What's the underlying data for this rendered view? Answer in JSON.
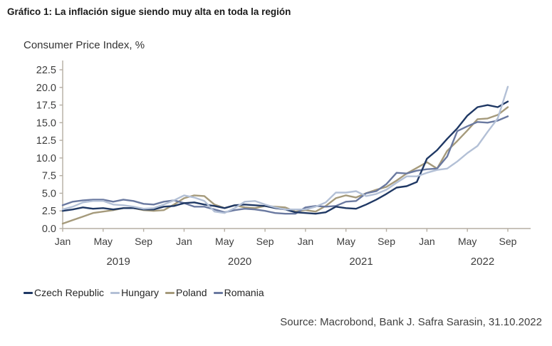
{
  "header": {
    "title": "Gráfico 1: La inflación sigue siendo muy alta en toda la región"
  },
  "source": "Source: Macrobond, Bank J. Safra Sarasin, 31.10.2022",
  "chart_data": {
    "type": "line",
    "title": "Consumer Price Index, %",
    "xlabel": "",
    "ylabel": "Consumer Price Index, %",
    "ylim": [
      0,
      22.5
    ],
    "ytick_step": 2.5,
    "grid": false,
    "legend_position": "bottom",
    "axis_color": "#b5aea3",
    "tick_label_color": "#3d3d3d",
    "xtick_months": [
      "Jan",
      "May",
      "Sep"
    ],
    "year_labels": [
      "2019",
      "2020",
      "2021",
      "2022"
    ],
    "categories": [
      "2019-01",
      "2019-02",
      "2019-03",
      "2019-04",
      "2019-05",
      "2019-06",
      "2019-07",
      "2019-08",
      "2019-09",
      "2019-10",
      "2019-11",
      "2019-12",
      "2020-01",
      "2020-02",
      "2020-03",
      "2020-04",
      "2020-05",
      "2020-06",
      "2020-07",
      "2020-08",
      "2020-09",
      "2020-10",
      "2020-11",
      "2020-12",
      "2021-01",
      "2021-02",
      "2021-03",
      "2021-04",
      "2021-05",
      "2021-06",
      "2021-07",
      "2021-08",
      "2021-09",
      "2021-10",
      "2021-11",
      "2021-12",
      "2022-01",
      "2022-02",
      "2022-03",
      "2022-04",
      "2022-05",
      "2022-06",
      "2022-07",
      "2022-08",
      "2022-09"
    ],
    "series": [
      {
        "name": "Czech Republic",
        "color": "#1f3864",
        "values": [
          2.5,
          2.7,
          3.0,
          2.8,
          2.9,
          2.7,
          2.9,
          2.9,
          2.7,
          2.7,
          3.1,
          3.2,
          3.6,
          3.7,
          3.4,
          3.2,
          2.9,
          3.3,
          3.4,
          3.3,
          3.2,
          2.9,
          2.7,
          2.3,
          2.2,
          2.1,
          2.3,
          3.1,
          2.9,
          2.8,
          3.4,
          4.1,
          4.9,
          5.8,
          6.0,
          6.6,
          9.9,
          11.1,
          12.7,
          14.2,
          16.0,
          17.2,
          17.5,
          17.2,
          18.0
        ]
      },
      {
        "name": "Hungary",
        "color": "#b3c0d6",
        "values": [
          2.7,
          3.1,
          3.7,
          3.9,
          3.9,
          3.4,
          3.3,
          3.1,
          2.8,
          2.9,
          3.4,
          4.0,
          4.7,
          4.4,
          3.9,
          2.4,
          2.2,
          2.9,
          3.8,
          3.9,
          3.4,
          3.0,
          2.7,
          2.7,
          2.7,
          3.1,
          3.7,
          5.1,
          5.1,
          5.3,
          4.6,
          4.9,
          5.5,
          6.5,
          7.4,
          7.4,
          7.9,
          8.3,
          8.5,
          9.5,
          10.7,
          11.7,
          13.7,
          15.6,
          20.1
        ]
      },
      {
        "name": "Poland",
        "color": "#a59a7b",
        "values": [
          0.7,
          1.2,
          1.7,
          2.2,
          2.4,
          2.6,
          2.9,
          2.9,
          2.6,
          2.5,
          2.6,
          3.4,
          4.3,
          4.7,
          4.6,
          3.4,
          2.9,
          3.3,
          3.0,
          2.9,
          3.2,
          3.1,
          3.0,
          2.4,
          2.6,
          2.4,
          3.2,
          4.3,
          4.7,
          4.4,
          5.0,
          5.5,
          5.9,
          6.8,
          7.8,
          8.6,
          9.4,
          8.5,
          11.0,
          12.4,
          13.9,
          15.5,
          15.6,
          16.1,
          17.2
        ]
      },
      {
        "name": "Romania",
        "color": "#6a79a0",
        "values": [
          3.3,
          3.8,
          4.0,
          4.1,
          4.1,
          3.8,
          4.1,
          3.9,
          3.5,
          3.4,
          3.8,
          4.0,
          3.6,
          3.1,
          3.1,
          2.7,
          2.3,
          2.6,
          2.8,
          2.7,
          2.5,
          2.2,
          2.1,
          2.1,
          3.0,
          3.2,
          3.1,
          3.2,
          3.8,
          3.9,
          5.0,
          5.3,
          6.3,
          7.9,
          7.8,
          8.2,
          8.4,
          8.5,
          10.2,
          13.8,
          14.5,
          15.1,
          15.0,
          15.3,
          15.9
        ]
      }
    ]
  }
}
